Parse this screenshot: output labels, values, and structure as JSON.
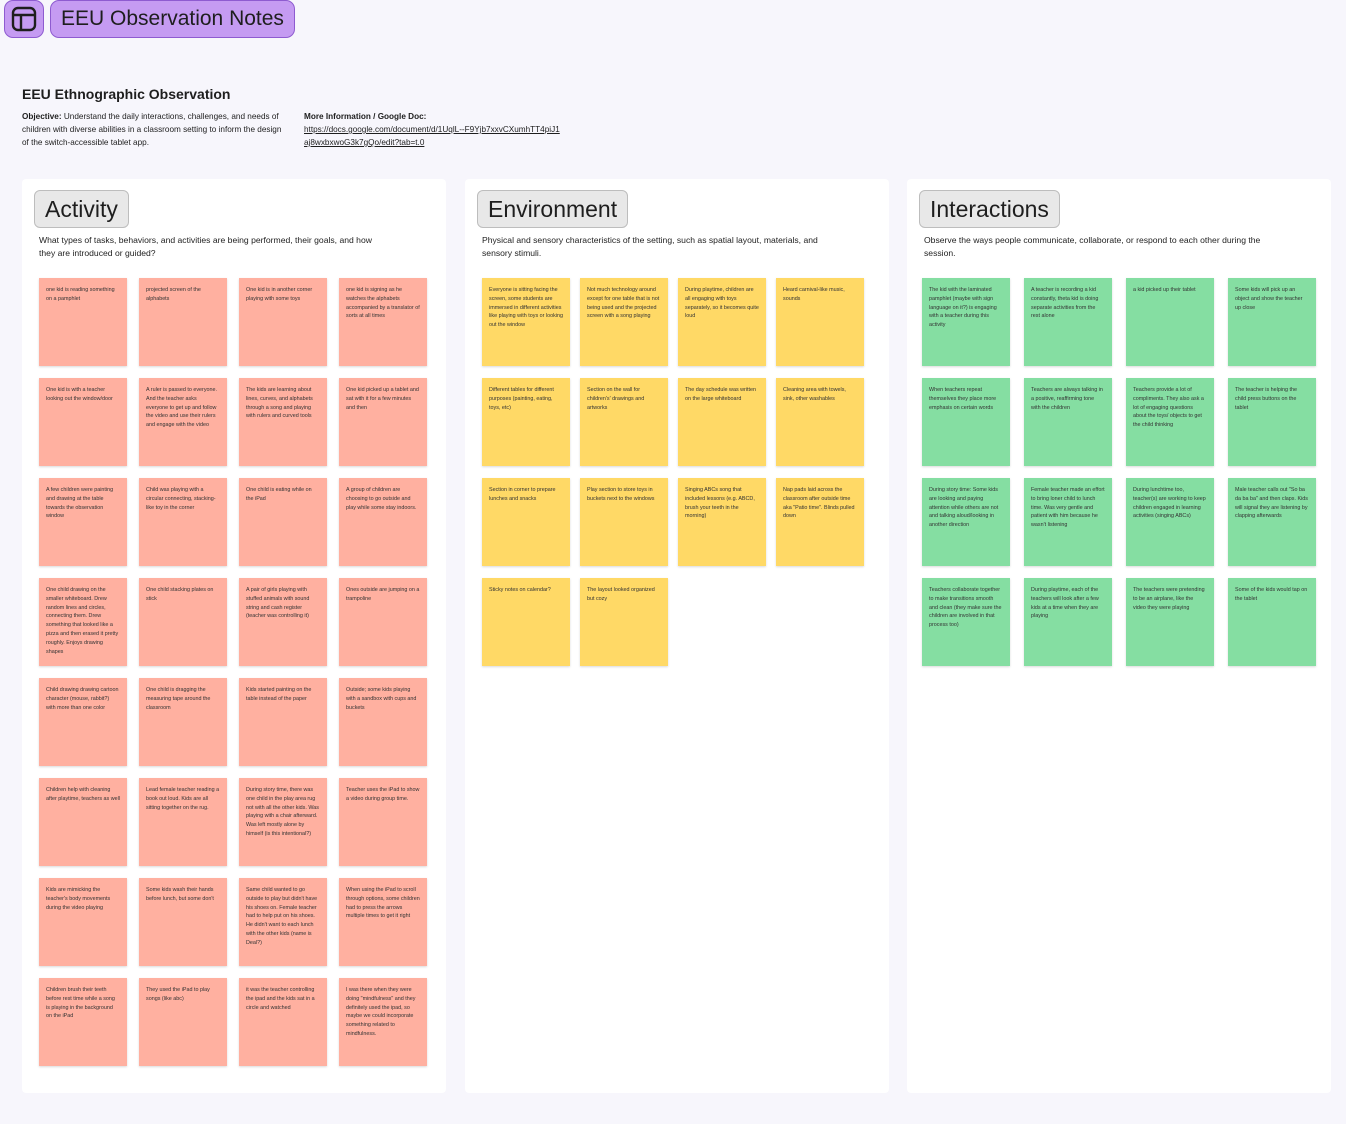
{
  "app": {
    "title": "EEU Observation Notes",
    "icon": "layout-icon",
    "accent": "#c59bf2"
  },
  "doc": {
    "title": "EEU Ethnographic Observation",
    "objective_label": "Objective:",
    "objective_text": " Understand the daily interactions, challenges, and needs of children with diverse abilities in a classroom setting to inform the design of the switch-accessible tablet app.",
    "more_info_label": "More Information / Google Doc:",
    "more_info_link": "https://docs.google.com/document/d/1UqlL--F9Yjb7xxvCXumhTT4piJ1aj8wxbxwoG3k7gQo/edit?tab=t.0"
  },
  "sections": [
    {
      "title": "Activity",
      "description": "What types of tasks, behaviors, and activities are being performed, their goals, and how they are introduced or guided?",
      "color": "#ffb0a0",
      "notes": [
        "one kid is reading something on a pamphlet",
        "projected screen of the alphabets",
        "One kid is in another corner playing with some toys",
        "one kid is signing as he watches the alphabets accompanied by a translator of sorts at all times",
        "One kid is with a teacher looking out the window/door",
        "A ruler is passed to everyone. And the teacher asks everyone to get up and follow the video and use their rulers and engage with the video",
        "The kids are learning about lines, curves, and alphabets through a song and playing with rulers and curved tools",
        "One kid picked up a tablet and sat with it for a few minutes and then",
        "A few children were painting and drawing at the table towards the observation window",
        "Child was playing with a circular connecting, stacking-like toy in the corner",
        "One child is eating while on the iPad",
        "A group of children are choosing to go outside and play while some stay indoors.",
        "One child drawing on the smaller whiteboard. Drew random lines and circles, connecting them. Drew something that looked like a pizza and then erased it pretty roughly. Enjoys drawing shapes",
        "One child stacking plates on stick",
        "A pair of girls playing with stuffed animals with sound string and cash register (teacher was controlling it)",
        "Ones outside are jumping on a trampoline",
        "Child drawing drawing cartoon character (mouse, rabbit?) with more than one color",
        "One child is dragging the measuring tape around the classroom",
        "Kids started painting on the table instead of the paper",
        "Outside; some kids playing with a sandbox with cups and buckets",
        "Children help with cleaning after playtime, teachers as well",
        "Lead female teacher reading a book out loud. Kids are all sitting together on the rug.",
        "During story time, there was one child in the play area rug not with all the other kids. Was playing with a chair afterward. Was left mostly alone by himself (is this intentional?)",
        "Teacher uses the iPad to show a video during group time.",
        "Kids are mimicking the teacher's body movements during the video playing",
        "Some kids wash their hands before lunch, but some don't",
        "Same child wanted to go outside to play but didn't have his shoes on. Female teacher had to help put on his shoes. He didn't want to each lunch with the other kids (name is Deal?)",
        "When using the iPad to scroll through options, some children had to press the arrows multiple times to get it right",
        "Children brush their teeth before rest time while a song is playing in the background on the iPad",
        "They used the iPad to play songs (like abc)",
        "it was the teacher controlling the ipad and the kids sat in a circle and watched",
        "I was there when they were doing \"mindfulness\" and they definitely used the ipad, so maybe we could incorporate something related to mindfulness."
      ]
    },
    {
      "title": "Environment",
      "description": "Physical and sensory characteristics of the setting, such as spatial layout, materials, and sensory stimuli.",
      "color": "#ffd966",
      "notes": [
        "Everyone is sitting facing the screen, some students are immersed in different activities like playing with toys or looking out the window",
        "Not much technology around except for one table that is not being used and the projected screen with a song playing",
        "During playtime, children are all engaging with toys separately, so it becomes quite loud",
        "Heard carnival-like music, sounds",
        "Different tables for different purposes (painting, eating, toys, etc)",
        "Section on the wall for children's' drawings and artworks",
        "The day schedule was written on the large whiteboard",
        "Cleaning area with towels, sink, other washables",
        "Section in corner to prepare lunches and snacks",
        "Play section to store toys in buckets next to the windows",
        "Singing ABCs song that included lessons (e.g. ABCD, brush your teeth in the morning)",
        "Nap pads laid across the classroom after outside time aka \"Patio time\". Blinds pulled down",
        "Sticky notes on calendar?",
        "The layout looked organized but cozy"
      ]
    },
    {
      "title": "Interactions",
      "description": "Observe the ways people communicate, collaborate, or respond to each other during the session.",
      "color": "#85dea2",
      "notes": [
        "The kid with the laminated pamphlet (maybe with sign language on it?) is engaging with a teacher during this activity",
        "A teacher is recording a kid constantly, theta kid is doing separate activities from the rest alone",
        "a kid picked up their tablet",
        "Some kids will pick up an object and show the teacher up close",
        "When teachers repeat themselves they place more emphasis on certain words",
        "Teachers are always talking in a positive, reaffirming tone with the children",
        "Teachers provide a lot of compliments. They also ask a lot of engaging questions about the toys/ objects to get the child thinking",
        "The teacher is helping the child press buttons on the tablet",
        "During story time: Some kids are looking and paying attention while others are not and talking aloud/looking in another direction",
        "Female teacher made an effort to bring loner child to lunch time. Was very gentle and patient with him because he wasn't listening",
        "During lunchtime too, teacher(s) are working to keep children engaged in learning activities (singing ABCs)",
        "Male teacher calls out \"So ba da ba ba\" and then claps. Kids will signal they are listening by clapping afterwards",
        "Teachers collaborate together to make transitions smooth and clean (they make sure the children are involved in that process too)",
        "During playtime, each of the teachers will look after a few kids at a time when they are playing",
        "The teachers were pretending to be an airplane, like the video they were playing",
        "Some of the kids would tap on the tablet"
      ]
    }
  ]
}
